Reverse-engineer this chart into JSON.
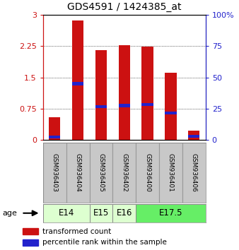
{
  "title": "GDS4591 / 1424385_at",
  "samples": [
    "GSM936403",
    "GSM936404",
    "GSM936405",
    "GSM936402",
    "GSM936400",
    "GSM936401",
    "GSM936406"
  ],
  "transformed_count": [
    0.55,
    2.87,
    2.15,
    2.27,
    2.24,
    1.62,
    0.22
  ],
  "percentile_rank": [
    0.07,
    1.35,
    0.8,
    0.83,
    0.85,
    0.65,
    0.09
  ],
  "age_groups": [
    {
      "label": "E14",
      "start": 0,
      "end": 2,
      "color": "#ddffd0"
    },
    {
      "label": "E15",
      "start": 2,
      "end": 3,
      "color": "#ddffd0"
    },
    {
      "label": "E16",
      "start": 3,
      "end": 4,
      "color": "#ddffd0"
    },
    {
      "label": "E17.5",
      "start": 4,
      "end": 7,
      "color": "#66ee66"
    }
  ],
  "bar_color": "#cc1111",
  "percentile_color": "#2222cc",
  "bar_width": 0.5,
  "ylim_left": [
    0,
    3
  ],
  "ylim_right": [
    0,
    100
  ],
  "yticks_left": [
    0,
    0.75,
    1.5,
    2.25,
    3
  ],
  "yticks_right": [
    0,
    25,
    50,
    75,
    100
  ],
  "ytick_labels_left": [
    "0",
    "0.75",
    "1.5",
    "2.25",
    "3"
  ],
  "ytick_labels_right": [
    "0",
    "25",
    "50",
    "75",
    "100%"
  ],
  "left_axis_color": "#cc1111",
  "right_axis_color": "#2222cc",
  "background_color": "#ffffff",
  "plot_bg_color": "#ffffff",
  "grid_color": "#000000",
  "legend_label_red": "transformed count",
  "legend_label_blue": "percentile rank within the sample",
  "age_label": "age"
}
